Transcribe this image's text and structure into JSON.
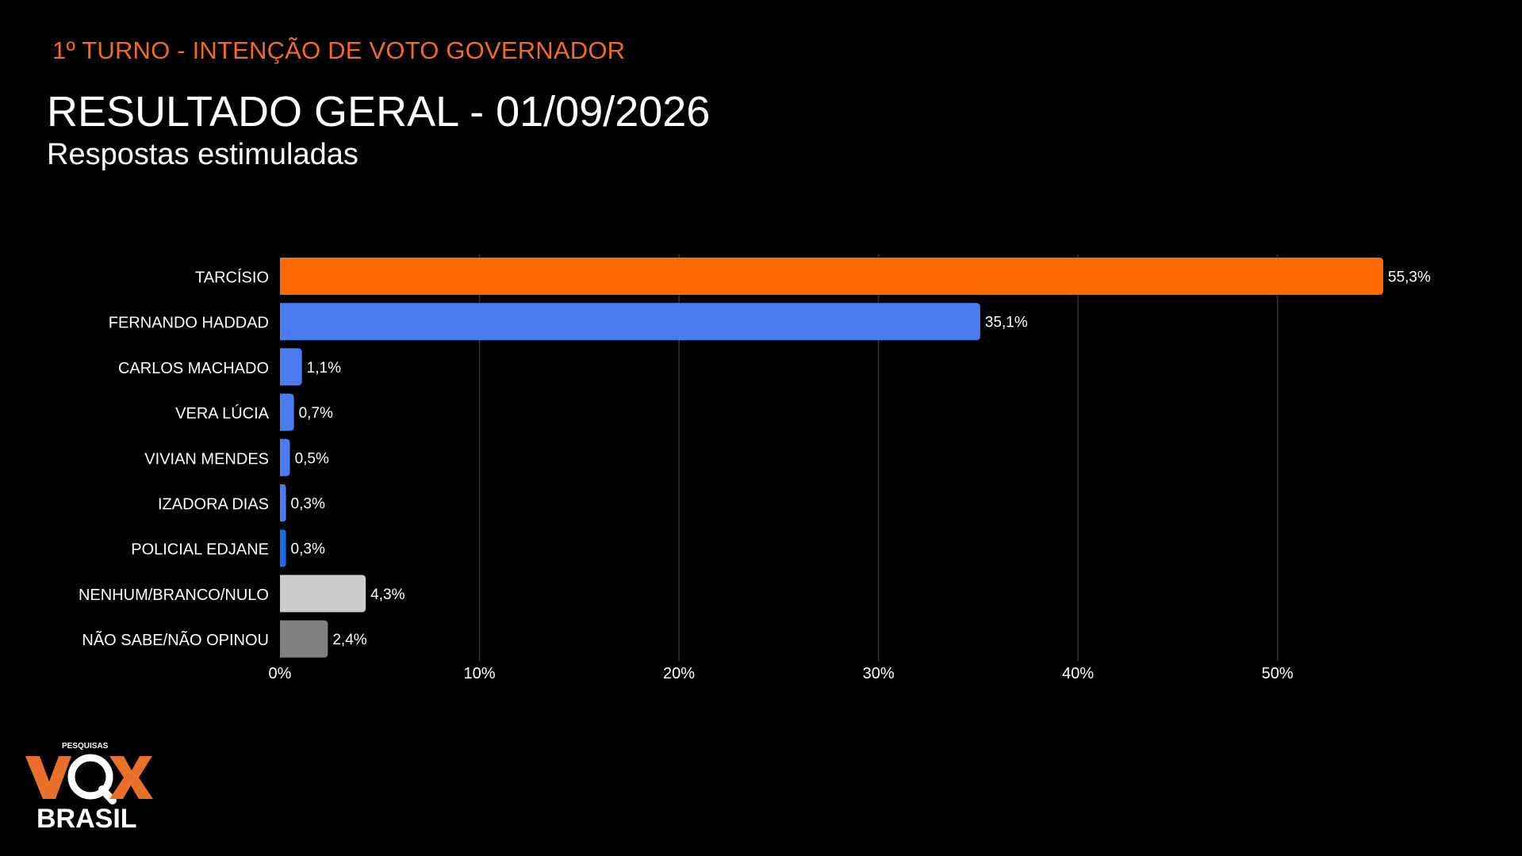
{
  "header": {
    "eyebrow": "1º TURNO - INTENÇÃO DE VOTO GOVERNADOR",
    "title": "RESULTADO GERAL - 01/09/2026",
    "subtitle": "Respostas estimuladas"
  },
  "chart_data": {
    "type": "bar",
    "orientation": "horizontal",
    "categories": [
      "TARCÍSIO",
      "FERNANDO HADDAD",
      "CARLOS MACHADO",
      "VERA LÚCIA",
      "VIVIAN MENDES",
      "IZADORA DIAS",
      "POLICIAL EDJANE",
      "NENHUM/BRANCO/NULO",
      "NÃO SABE/NÃO OPINOU"
    ],
    "values": [
      55.3,
      35.1,
      1.1,
      0.7,
      0.5,
      0.3,
      0.3,
      4.3,
      2.4
    ],
    "value_labels": [
      "55,3%",
      "35,1%",
      "1,1%",
      "0,7%",
      "0,5%",
      "0,3%",
      "0,3%",
      "4,3%",
      "2,4%"
    ],
    "colors": [
      "#ff6a00",
      "#4a7cf0",
      "#4a7cf0",
      "#4a7cf0",
      "#4a7cf0",
      "#4a7cf0",
      "#1f6ae6",
      "#cccccc",
      "#808080"
    ],
    "xlim": [
      0,
      55.3
    ],
    "xticks": [
      0,
      10,
      20,
      30,
      40,
      50
    ],
    "xtick_labels": [
      "0%",
      "10%",
      "20%",
      "30%",
      "40%",
      "50%"
    ],
    "grid": "vertical",
    "background": "#000000",
    "text_color": "#ffffff",
    "grid_color": "#333333"
  },
  "logo": {
    "top_text": "PESQUISAS",
    "main_text": "VOX",
    "bottom_text": "BRASIL",
    "color": "#e8702a"
  }
}
